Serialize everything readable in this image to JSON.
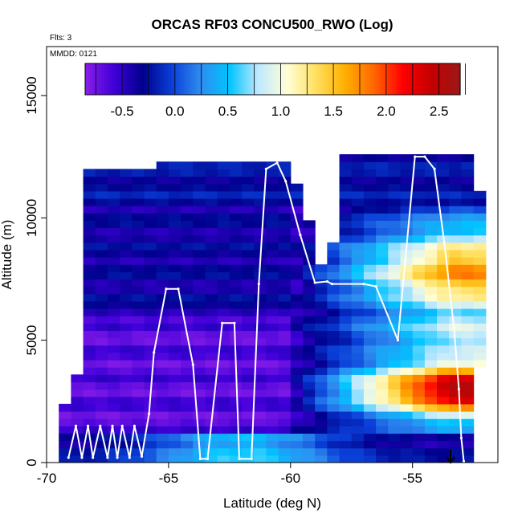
{
  "chart_data": {
    "type": "heatmap",
    "title": "ORCAS RF03 CONCU500_RWO (Log)",
    "notes": [
      "Flts: 3",
      "MMDD: 0121"
    ],
    "xlabel": "Latitude (deg N)",
    "ylabel": "Altitude (m)",
    "xlim": [
      -70,
      -51.5
    ],
    "ylim": [
      0,
      17000
    ],
    "xticks": [
      -70,
      -65,
      -60,
      -55
    ],
    "xtick_labels": [
      "-70",
      "-65",
      "-60",
      "-55"
    ],
    "yticks": [
      0,
      5000,
      10000,
      15000
    ],
    "ytick_labels": [
      "0",
      "5000",
      "10000",
      "15000"
    ],
    "colorbar": {
      "range": [
        -0.85,
        2.7
      ],
      "ticks": [
        -0.5,
        0.0,
        0.5,
        1.0,
        1.5,
        2.0,
        2.5
      ],
      "tick_labels": [
        "-0.5",
        "0.0",
        "0.5",
        "1.0",
        "1.5",
        "2.0",
        "2.5"
      ],
      "colors": [
        "#8a1ee8",
        "#3f00d8",
        "#00008c",
        "#0a3fd8",
        "#2f8cf0",
        "#00c4ff",
        "#bfe8ff",
        "#ffffd8",
        "#ffe060",
        "#ffb000",
        "#ff6800",
        "#ff0000",
        "#c40000",
        "#9a1818"
      ]
    },
    "flight_track": {
      "lat": [
        -69.1,
        -68.8,
        -68.55,
        -68.3,
        -68.1,
        -67.8,
        -67.5,
        -67.3,
        -67.1,
        -66.9,
        -66.6,
        -66.4,
        -66.1,
        -65.8,
        -65.6,
        -65.1,
        -64.6,
        -64.0,
        -63.7,
        -63.4,
        -62.8,
        -62.3,
        -62.1,
        -61.6,
        -61.3,
        -61.0,
        -60.55,
        -60.2,
        -59.6,
        -59.0,
        -58.5,
        -58.3,
        -57.0,
        -56.5,
        -55.6,
        -54.9,
        -54.5,
        -54.1,
        -53.7,
        -53.3,
        -53.1,
        -53.0,
        -52.9
      ],
      "alt": [
        200,
        1500,
        200,
        1500,
        200,
        1500,
        200,
        1500,
        200,
        1500,
        200,
        1500,
        250,
        2000,
        4500,
        7100,
        7100,
        4000,
        150,
        150,
        5700,
        5700,
        150,
        150,
        7300,
        12000,
        12250,
        11500,
        9300,
        7350,
        7400,
        7300,
        7300,
        7200,
        5000,
        12500,
        12500,
        12000,
        9000,
        5500,
        3000,
        1000,
        50
      ]
    }
  }
}
